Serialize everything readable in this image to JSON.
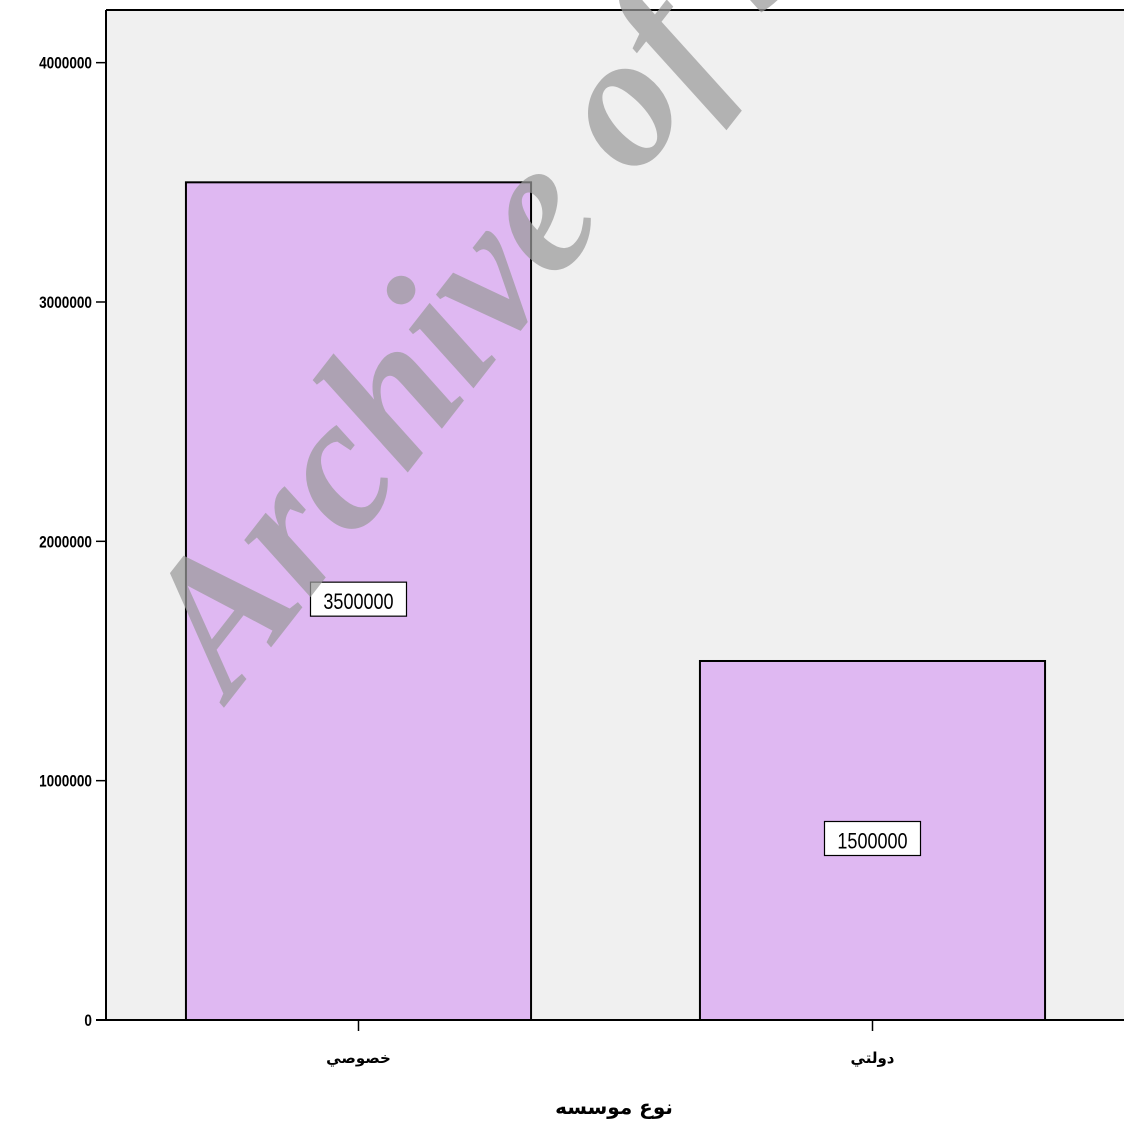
{
  "chart_data": {
    "type": "bar",
    "categories": [
      "خصوصي",
      "دولتي"
    ],
    "values": [
      3500000,
      1500000
    ],
    "data_labels": [
      "3500000",
      "1500000"
    ],
    "xlabel": "نوع موسسه",
    "ylabel": "",
    "ylim": [
      0,
      4220000
    ],
    "yticks": [
      0,
      1000000,
      2000000,
      3000000,
      4000000
    ],
    "ytick_labels": [
      "0",
      "1000000",
      "2000000",
      "3000000",
      "4000000"
    ],
    "grid": false,
    "colors": {
      "bar": "#dfb8f2",
      "plot_background": "#f0f0f0",
      "outline": "#000000"
    }
  },
  "watermark": "Archive of SID"
}
